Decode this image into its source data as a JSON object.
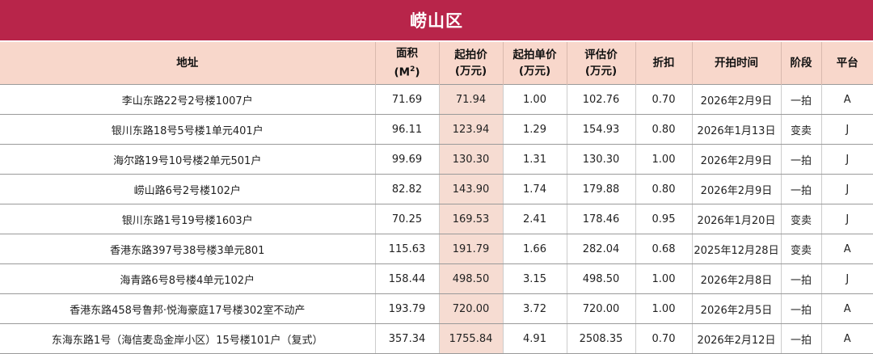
{
  "title": "崂山区",
  "headers": {
    "address": "地址",
    "area": "面积",
    "area_unit": "(M",
    "area_unit_sup": "2",
    "area_unit_close": ")",
    "start_price": "起拍价",
    "start_price_unit": "(万元)",
    "unit_price": "起拍单价",
    "unit_price_unit": "(万元)",
    "eval_price": "评估价",
    "eval_price_unit": "(万元)",
    "discount": "折扣",
    "start_time": "开拍时间",
    "stage": "阶段",
    "platform": "平台"
  },
  "rows": [
    {
      "address": "李山东路22号2号楼1007户",
      "area": "71.69",
      "start_price": "71.94",
      "unit_price": "1.00",
      "eval_price": "102.76",
      "discount": "0.70",
      "start_time": "2026年2月9日",
      "stage": "一拍",
      "platform": "A"
    },
    {
      "address": "银川东路18号5号楼1单元401户",
      "area": "96.11",
      "start_price": "123.94",
      "unit_price": "1.29",
      "eval_price": "154.93",
      "discount": "0.80",
      "start_time": "2026年1月13日",
      "stage": "变卖",
      "platform": "J"
    },
    {
      "address": "海尔路19号10号楼2单元501户",
      "area": "99.69",
      "start_price": "130.30",
      "unit_price": "1.31",
      "eval_price": "130.30",
      "discount": "1.00",
      "start_time": "2026年2月9日",
      "stage": "一拍",
      "platform": "J"
    },
    {
      "address": "崂山路6号2号楼102户",
      "area": "82.82",
      "start_price": "143.90",
      "unit_price": "1.74",
      "eval_price": "179.88",
      "discount": "0.80",
      "start_time": "2026年2月9日",
      "stage": "一拍",
      "platform": "J"
    },
    {
      "address": "银川东路1号19号楼1603户",
      "area": "70.25",
      "start_price": "169.53",
      "unit_price": "2.41",
      "eval_price": "178.46",
      "discount": "0.95",
      "start_time": "2026年1月20日",
      "stage": "变卖",
      "platform": "J"
    },
    {
      "address": "香港东路397号38号楼3单元801",
      "area": "115.63",
      "start_price": "191.79",
      "unit_price": "1.66",
      "eval_price": "282.04",
      "discount": "0.68",
      "start_time": "2025年12月28日",
      "stage": "变卖",
      "platform": "A"
    },
    {
      "address": "海青路6号8号楼4单元102户",
      "area": "158.44",
      "start_price": "498.50",
      "unit_price": "3.15",
      "eval_price": "498.50",
      "discount": "1.00",
      "start_time": "2026年2月8日",
      "stage": "一拍",
      "platform": "J"
    },
    {
      "address": "香港东路458号鲁邦·悦海豪庭17号楼302室不动产",
      "area": "193.79",
      "start_price": "720.00",
      "unit_price": "3.72",
      "eval_price": "720.00",
      "discount": "1.00",
      "start_time": "2026年2月5日",
      "stage": "一拍",
      "platform": "A"
    },
    {
      "address": "东海东路1号（海信麦岛金岸小区）15号楼101户（复式）",
      "area": "357.34",
      "start_price": "1755.84",
      "unit_price": "4.91",
      "eval_price": "2508.35",
      "discount": "0.70",
      "start_time": "2026年2月12日",
      "stage": "一拍",
      "platform": "A"
    }
  ]
}
